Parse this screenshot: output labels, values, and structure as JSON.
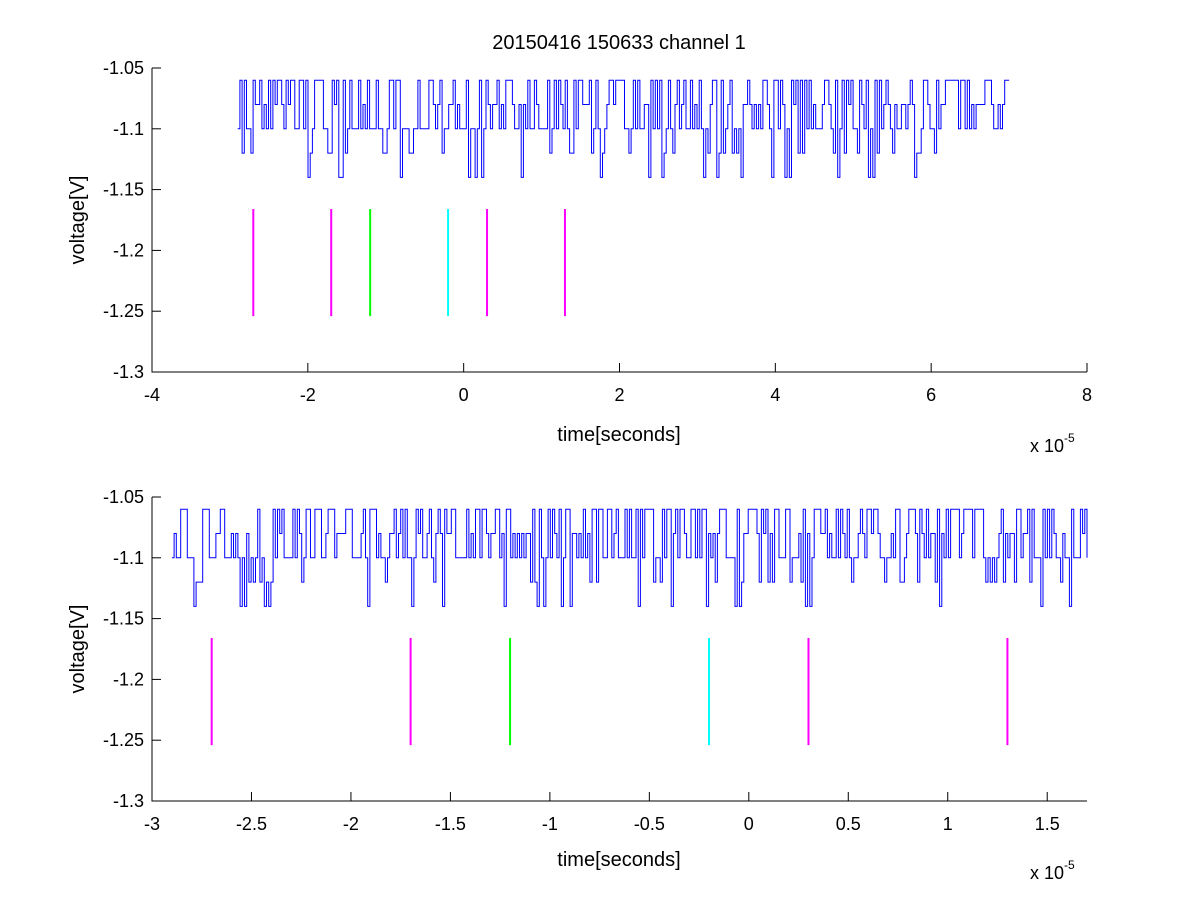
{
  "figure": {
    "title": "20150416 150633 channel 1"
  },
  "chart_data": [
    {
      "type": "line",
      "xlabel": "time[seconds]",
      "ylabel": "voltage[V]",
      "x_multiplier_label": "x 10",
      "x_multiplier_exponent": "-5",
      "xlim": [
        -4,
        8
      ],
      "ylim": [
        -1.3,
        -1.05
      ],
      "xticks": [
        -4,
        -2,
        0,
        2,
        4,
        6,
        8
      ],
      "xtick_labels": [
        "-4",
        "-2",
        "0",
        "2",
        "4",
        "6",
        "8"
      ],
      "yticks": [
        -1.05,
        -1.1,
        -1.15,
        -1.2,
        -1.25,
        -1.3
      ],
      "ytick_labels": [
        "-1.05",
        "-1.1",
        "-1.15",
        "-1.2",
        "-1.25",
        "-1.3"
      ],
      "grid": false,
      "signal": {
        "color": "#0000ff",
        "x_range": [
          -2.9,
          7.0
        ],
        "levels": [
          -1.06,
          -1.08,
          -1.1,
          -1.12,
          -1.14
        ],
        "baseline": -1.1
      },
      "markers": [
        {
          "x": -2.7,
          "y": [
            -1.254,
            -1.166
          ],
          "color": "#ff00ff"
        },
        {
          "x": -1.7,
          "y": [
            -1.254,
            -1.166
          ],
          "color": "#ff00ff"
        },
        {
          "x": -1.2,
          "y": [
            -1.254,
            -1.166
          ],
          "color": "#00ff00"
        },
        {
          "x": -0.2,
          "y": [
            -1.254,
            -1.166
          ],
          "color": "#00ffff"
        },
        {
          "x": 0.3,
          "y": [
            -1.254,
            -1.166
          ],
          "color": "#ff00ff"
        },
        {
          "x": 1.3,
          "y": [
            -1.254,
            -1.166
          ],
          "color": "#ff00ff"
        }
      ]
    },
    {
      "type": "line",
      "xlabel": "time[seconds]",
      "ylabel": "voltage[V]",
      "x_multiplier_label": "x 10",
      "x_multiplier_exponent": "-5",
      "xlim": [
        -3.0,
        1.7
      ],
      "ylim": [
        -1.3,
        -1.05
      ],
      "xticks": [
        -3,
        -2.5,
        -2,
        -1.5,
        -1,
        -0.5,
        0,
        0.5,
        1,
        1.5
      ],
      "xtick_labels": [
        "-3",
        "-2.5",
        "-2",
        "-1.5",
        "-1",
        "-0.5",
        "0",
        "0.5",
        "1",
        "1.5"
      ],
      "yticks": [
        -1.05,
        -1.1,
        -1.15,
        -1.2,
        -1.25,
        -1.3
      ],
      "ytick_labels": [
        "-1.05",
        "-1.1",
        "-1.15",
        "-1.2",
        "-1.25",
        "-1.3"
      ],
      "grid": false,
      "signal": {
        "color": "#0000ff",
        "x_range": [
          -2.9,
          1.7
        ],
        "levels": [
          -1.06,
          -1.08,
          -1.1,
          -1.12,
          -1.14
        ],
        "baseline": -1.1
      },
      "markers": [
        {
          "x": -2.7,
          "y": [
            -1.254,
            -1.166
          ],
          "color": "#ff00ff"
        },
        {
          "x": -1.7,
          "y": [
            -1.254,
            -1.166
          ],
          "color": "#ff00ff"
        },
        {
          "x": -1.2,
          "y": [
            -1.254,
            -1.166
          ],
          "color": "#00ff00"
        },
        {
          "x": -0.2,
          "y": [
            -1.254,
            -1.166
          ],
          "color": "#00ffff"
        },
        {
          "x": 0.3,
          "y": [
            -1.254,
            -1.166
          ],
          "color": "#ff00ff"
        },
        {
          "x": 1.3,
          "y": [
            -1.254,
            -1.166
          ],
          "color": "#ff00ff"
        }
      ]
    }
  ]
}
